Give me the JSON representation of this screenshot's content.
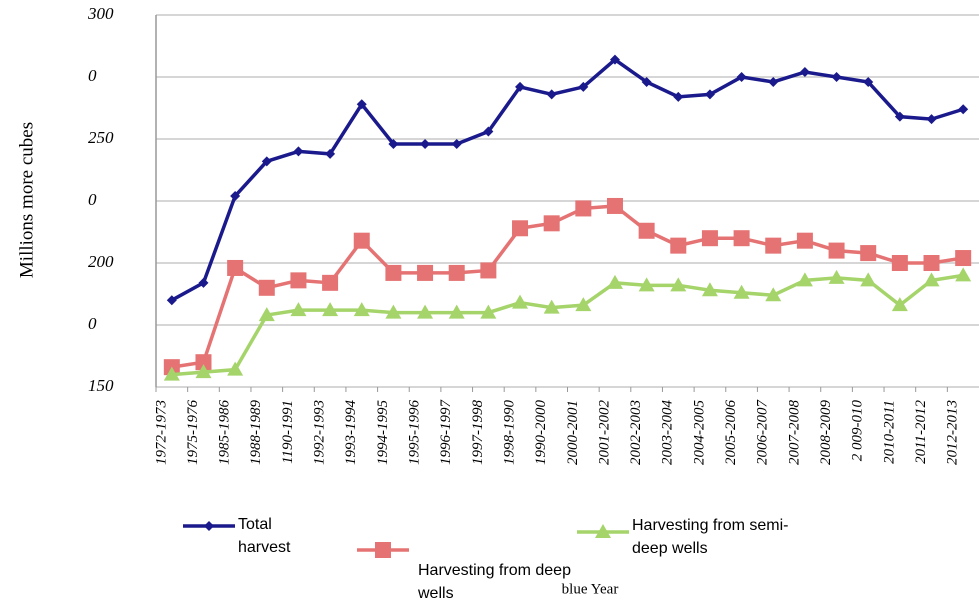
{
  "chart_data": {
    "type": "line",
    "y_label": "Millions more cubes",
    "x_label": "blue Year",
    "categories": [
      "1972-1973",
      "1975-1976",
      "1985-1986",
      "1988-1989",
      "1190-1991",
      "1992-1993",
      "1993-1994",
      "1994-1995",
      "1995-1996",
      "1996-1997",
      "1997-1998",
      "1998-1990",
      "1990-2000",
      "2000-2001",
      "2001-2002",
      "2002-2003",
      "2003-2004",
      "2004-2005",
      "2005-2006",
      "2006-2007",
      "2007-2008",
      "2008-2009",
      "2 009-010",
      "2010-2011",
      "2011-2012",
      "2012-2013"
    ],
    "series": [
      {
        "name": "Total harvest",
        "color": "#1a1a8c",
        "marker": "diamond",
        "values": [
          185,
          192,
          227,
          241,
          245,
          244,
          264,
          248,
          248,
          248,
          253,
          271,
          268,
          271,
          282,
          273,
          267,
          268,
          275,
          273,
          277,
          275,
          273,
          259,
          258,
          262
        ]
      },
      {
        "name": "Harvesting from deep wells",
        "color": "#e57373",
        "marker": "square",
        "values": [
          158,
          160,
          198,
          190,
          193,
          192,
          209,
          196,
          196,
          196,
          197,
          214,
          216,
          222,
          223,
          213,
          207,
          210,
          210,
          207,
          209,
          205,
          204,
          200,
          200,
          202
        ]
      },
      {
        "name": "Harvesting from semi-deep wells",
        "color": "#a5d46a",
        "marker": "triangle",
        "values": [
          155,
          156,
          157,
          179,
          181,
          181,
          181,
          180,
          180,
          180,
          180,
          184,
          182,
          183,
          192,
          191,
          191,
          189,
          188,
          187,
          193,
          194,
          193,
          183,
          193,
          195
        ]
      }
    ],
    "ylim": [
      150,
      300
    ],
    "yticks": [
      300,
      {
        "value": 275,
        "label": "0"
      },
      250,
      {
        "value": 225,
        "label": "0"
      },
      200,
      {
        "value": 175,
        "label": "0"
      },
      150
    ],
    "grid": true
  }
}
